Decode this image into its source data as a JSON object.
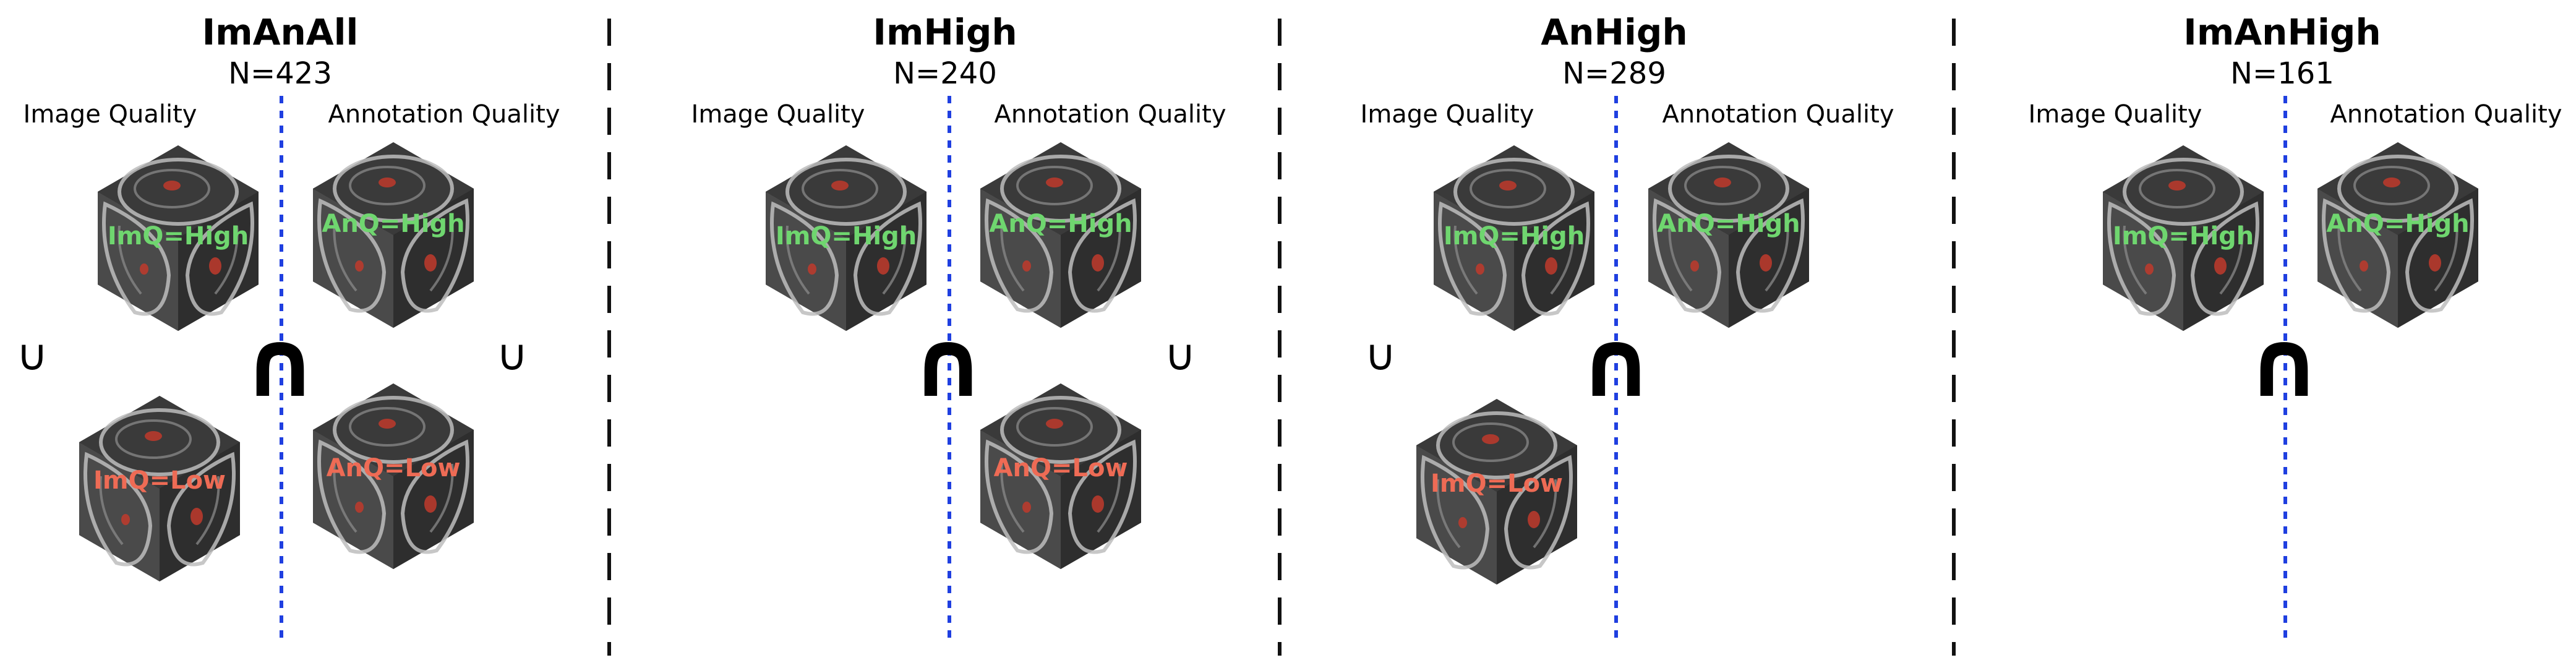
{
  "colors": {
    "high_label": "#6fd66f",
    "low_label": "#ee6b55",
    "separator_line": "#1f3fe0",
    "dashed_divider": "#111111"
  },
  "panels": [
    {
      "title": "ImAnAll",
      "n": "N=423",
      "image_quality_label": "Image Quality",
      "annotation_quality_label": "Annotation Quality",
      "im_high": "ImQ=High",
      "an_high": "AnQ=High",
      "im_low": "ImQ=Low",
      "an_low": "AnQ=Low",
      "union_left": "∪",
      "intersection": "∩",
      "union_right": "∪"
    },
    {
      "title": "ImHigh",
      "n": "N=240",
      "image_quality_label": "Image Quality",
      "annotation_quality_label": "Annotation Quality",
      "im_high": "ImQ=High",
      "an_high": "AnQ=High",
      "an_low": "AnQ=Low",
      "intersection": "∩",
      "union_right": "∪"
    },
    {
      "title": "AnHigh",
      "n": "N=289",
      "image_quality_label": "Image Quality",
      "annotation_quality_label": "Annotation Quality",
      "im_high": "ImQ=High",
      "an_high": "AnQ=High",
      "im_low": "ImQ=Low",
      "union_left": "∪",
      "intersection": "∩"
    },
    {
      "title": "ImAnHigh",
      "n": "N=161",
      "image_quality_label": "Image Quality",
      "annotation_quality_label": "Annotation Quality",
      "im_high": "ImQ=High",
      "an_high": "AnQ=High",
      "intersection": "∩"
    }
  ]
}
